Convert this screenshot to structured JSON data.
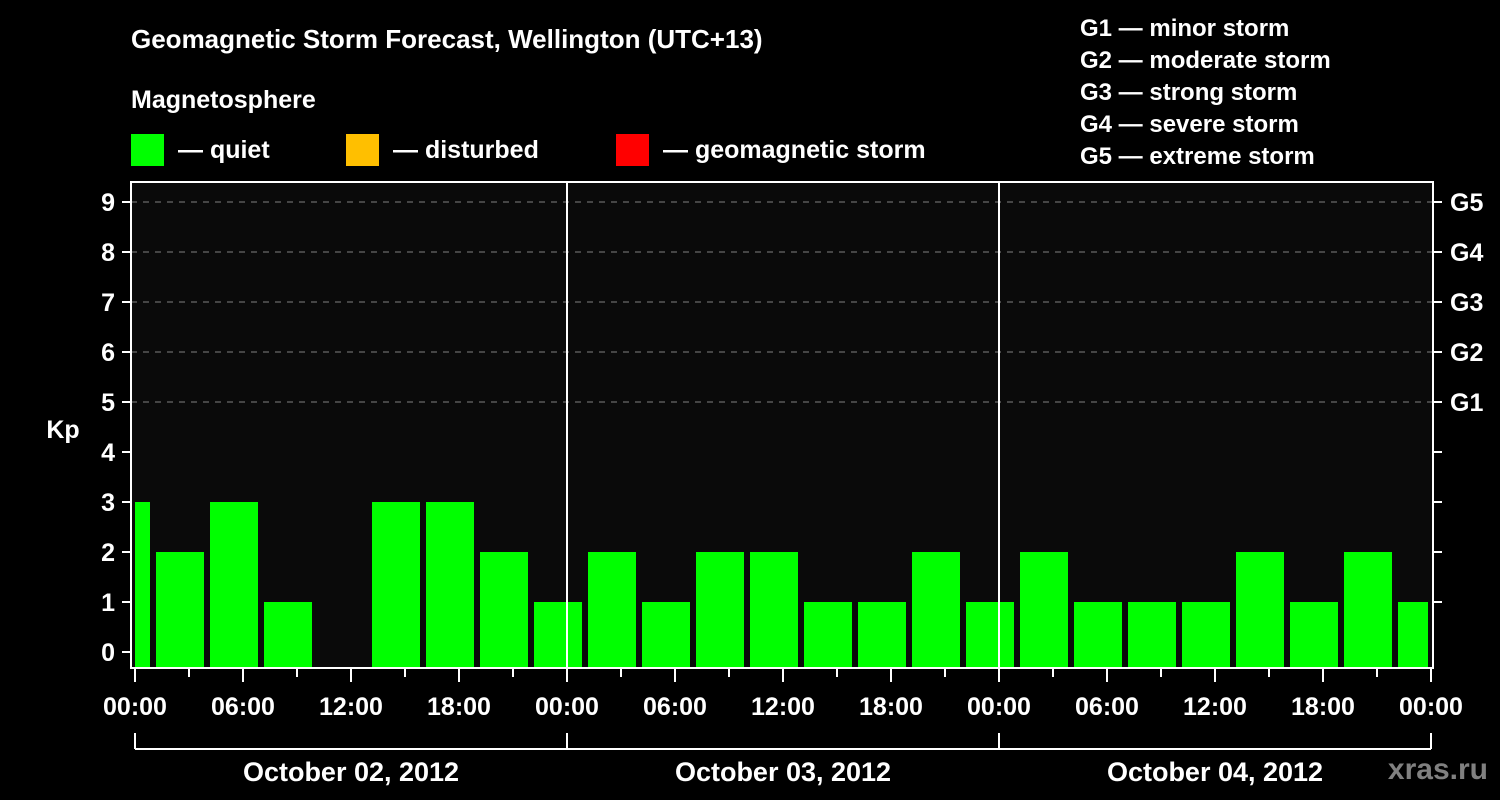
{
  "header": {
    "title": "Geomagnetic Storm Forecast, Wellington (UTC+13)",
    "legend_heading": "Magnetosphere",
    "legend": [
      {
        "label": "— quiet",
        "color": "#00ff00"
      },
      {
        "label": "— disturbed",
        "color": "#ffbf00"
      },
      {
        "label": "— geomagnetic storm",
        "color": "#ff0000"
      }
    ]
  },
  "g_scale": [
    "G1 — minor storm",
    "G2 — moderate storm",
    "G3 — strong storm",
    "G4 — severe storm",
    "G5 — extreme storm"
  ],
  "watermark": "xras.ru",
  "chart_data": {
    "type": "bar",
    "title": "Geomagnetic Storm Forecast, Wellington (UTC+13)",
    "xlabel": "",
    "ylabel": "Kp",
    "ylim": [
      0,
      9
    ],
    "yticks": [
      0,
      1,
      2,
      3,
      4,
      5,
      6,
      7,
      8,
      9
    ],
    "right_axis_ticks": [
      {
        "kp": 5,
        "label": "G1"
      },
      {
        "kp": 6,
        "label": "G2"
      },
      {
        "kp": 7,
        "label": "G3"
      },
      {
        "kp": 8,
        "label": "G4"
      },
      {
        "kp": 9,
        "label": "G5"
      }
    ],
    "grid": "dashed horizontal at Kp 5–9",
    "xtick_labels": [
      "00:00",
      "06:00",
      "12:00",
      "18:00",
      "00:00",
      "06:00",
      "12:00",
      "18:00",
      "00:00",
      "06:00",
      "12:00",
      "18:00",
      "00:00"
    ],
    "days": [
      "October 02, 2012",
      "October 03, 2012",
      "October 04, 2012"
    ],
    "slot_hours": 3,
    "colors": {
      "quiet": "#00ff00",
      "disturbed": "#ffbf00",
      "storm": "#ff0000"
    },
    "series": [
      {
        "name": "Kp",
        "values": [
          3,
          2,
          3,
          1,
          null,
          3,
          3,
          2,
          1,
          2,
          1,
          2,
          2,
          1,
          1,
          2,
          1,
          2,
          1,
          1,
          1,
          2,
          1,
          2,
          1
        ]
      }
    ]
  }
}
